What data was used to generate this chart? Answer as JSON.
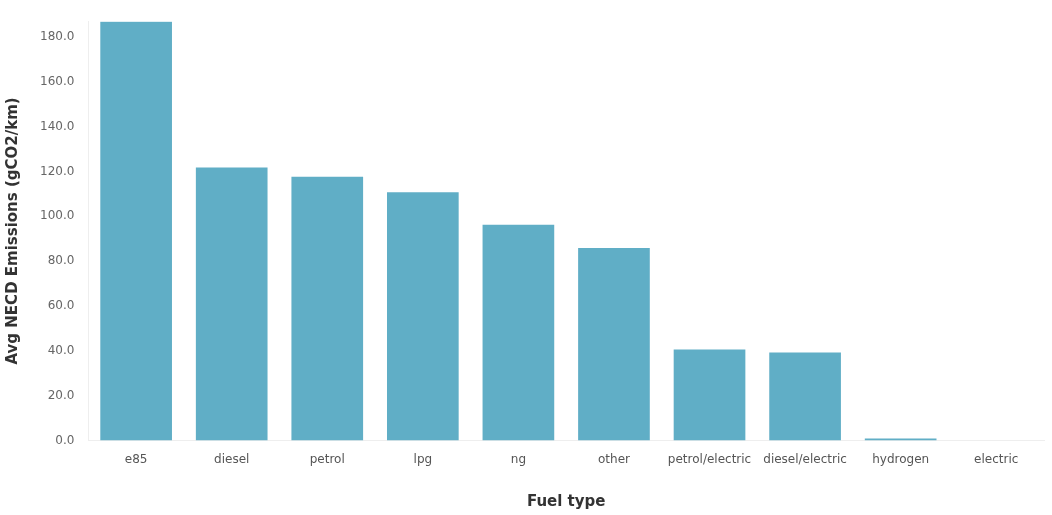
{
  "chart_data": {
    "type": "bar",
    "xlabel": "Fuel type",
    "ylabel": "Avg NECD Emissions (gCO2/km)",
    "categories": [
      "e85",
      "diesel",
      "petrol",
      "lpg",
      "ng",
      "other",
      "petrol/electric",
      "diesel/electric",
      "hydrogen",
      "electric"
    ],
    "values": [
      186.8,
      121.8,
      117.6,
      110.7,
      96.2,
      85.9,
      40.6,
      39.3,
      0.9,
      0
    ],
    "color": "#60aec6",
    "ylim": [
      0,
      187
    ],
    "yticks": [
      {
        "value": 0,
        "label": "0.0"
      },
      {
        "value": 20,
        "label": "20.0"
      },
      {
        "value": 40,
        "label": "40.0"
      },
      {
        "value": 60,
        "label": "60.0"
      },
      {
        "value": 80,
        "label": "80.0"
      },
      {
        "value": 100,
        "label": "100.0"
      },
      {
        "value": 120,
        "label": "120.0"
      },
      {
        "value": 140,
        "label": "140.0"
      },
      {
        "value": 160,
        "label": "160.0"
      },
      {
        "value": 180,
        "label": "180.0"
      }
    ],
    "grid": false
  }
}
